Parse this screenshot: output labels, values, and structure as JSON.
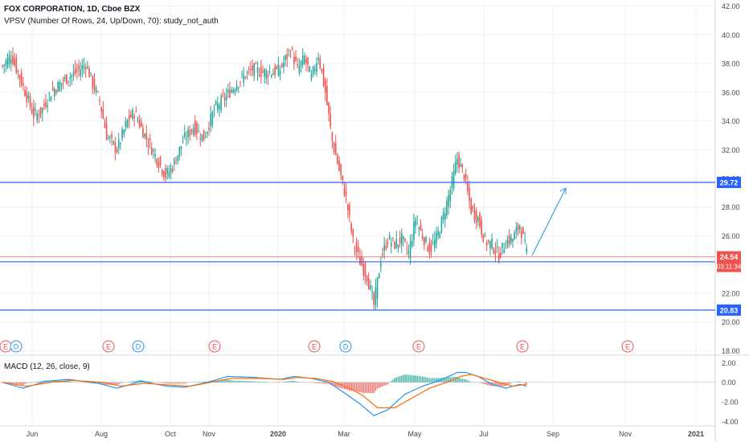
{
  "header": {
    "title": "FOX CORPORATION, 1D, Cboe BZX",
    "study": "VPSV (Number Of Rows, 24, Up/Down, 70): study_not_auth"
  },
  "macd_legend": "MACD (12, 26, close, 9)",
  "colors": {
    "up": "#26a69a",
    "down": "#ef5350",
    "level_line": "#2962ff",
    "last_price": "#ef5350",
    "macd_line": "#2196f3",
    "signal_line": "#ff6d00",
    "arrow": "#1e9bd0",
    "grid": "#eef0f3",
    "axis_text": "#4a4a4a"
  },
  "chart_data": [
    {
      "type": "candlestick",
      "title": "FOX CORPORATION, 1D, Cboe BZX",
      "x_labels": [
        "Jun",
        "Aug",
        "Oct",
        "Nov",
        "2020",
        "Mar",
        "May",
        "Jul",
        "Sep",
        "Nov",
        "2021"
      ],
      "y_ticks": [
        "42.00",
        "40.00",
        "38.00",
        "36.00",
        "34.00",
        "32.00",
        "30.00",
        "28.00",
        "26.00",
        "24.00",
        "22.00",
        "20.00",
        "18.00"
      ],
      "ylim": [
        17.8,
        42.2
      ],
      "close_anchors": [
        [
          0,
          37.8
        ],
        [
          5,
          38.6
        ],
        [
          12,
          36.4
        ],
        [
          18,
          34.4
        ],
        [
          22,
          34.6
        ],
        [
          28,
          36.0
        ],
        [
          35,
          36.8
        ],
        [
          40,
          37.2
        ],
        [
          45,
          37.6
        ],
        [
          48,
          38.0
        ],
        [
          52,
          36.6
        ],
        [
          56,
          35.4
        ],
        [
          60,
          33.0
        ],
        [
          66,
          32.0
        ],
        [
          72,
          34.0
        ],
        [
          76,
          34.6
        ],
        [
          82,
          33.0
        ],
        [
          88,
          31.6
        ],
        [
          94,
          30.2
        ],
        [
          98,
          30.8
        ],
        [
          104,
          32.6
        ],
        [
          110,
          33.6
        ],
        [
          116,
          32.8
        ],
        [
          122,
          34.8
        ],
        [
          128,
          35.6
        ],
        [
          132,
          36.2
        ],
        [
          138,
          37.0
        ],
        [
          144,
          37.6
        ],
        [
          150,
          37.4
        ],
        [
          156,
          37.4
        ],
        [
          160,
          37.6
        ],
        [
          166,
          39.0
        ],
        [
          170,
          37.6
        ],
        [
          174,
          38.4
        ],
        [
          178,
          37.0
        ],
        [
          182,
          38.6
        ],
        [
          186,
          36.0
        ],
        [
          190,
          32.6
        ],
        [
          194,
          30.6
        ],
        [
          198,
          28.6
        ],
        [
          202,
          25.6
        ],
        [
          206,
          24.2
        ],
        [
          210,
          23.2
        ],
        [
          214,
          21.2
        ],
        [
          218,
          24.4
        ],
        [
          222,
          25.8
        ],
        [
          226,
          25.4
        ],
        [
          230,
          25.8
        ],
        [
          234,
          24.8
        ],
        [
          238,
          27.2
        ],
        [
          242,
          26.0
        ],
        [
          246,
          25.0
        ],
        [
          250,
          25.8
        ],
        [
          254,
          27.4
        ],
        [
          258,
          29.2
        ],
        [
          262,
          31.4
        ],
        [
          266,
          30.2
        ],
        [
          270,
          27.8
        ],
        [
          274,
          27.2
        ],
        [
          278,
          25.6
        ],
        [
          282,
          25.4
        ],
        [
          286,
          24.6
        ],
        [
          290,
          25.6
        ],
        [
          294,
          25.8
        ],
        [
          298,
          26.8
        ],
        [
          302,
          24.8
        ]
      ],
      "candle_count": 303,
      "horizontal_levels": [
        "29.72",
        "24.19",
        "20.83"
      ],
      "last_price": "24.54",
      "countdown": "03:11:34",
      "earnings_markers": [
        "E",
        "D",
        "E",
        "D",
        "E",
        "E",
        "D",
        "E",
        "E",
        "E"
      ]
    },
    {
      "type": "line",
      "title": "MACD (12, 26, close, 9)",
      "y_ticks": [
        "2.00",
        "0.00",
        "-2.00",
        "-4.00"
      ],
      "ylim": [
        -4.2,
        2.6
      ],
      "series": [
        {
          "name": "MACD",
          "anchors": [
            [
              0,
              0.0
            ],
            [
              12,
              -0.6
            ],
            [
              25,
              0.1
            ],
            [
              38,
              0.3
            ],
            [
              55,
              -0.1
            ],
            [
              66,
              -0.6
            ],
            [
              80,
              0.1
            ],
            [
              95,
              -0.4
            ],
            [
              105,
              -0.5
            ],
            [
              118,
              0.0
            ],
            [
              130,
              0.6
            ],
            [
              145,
              0.5
            ],
            [
              160,
              0.3
            ],
            [
              168,
              0.6
            ],
            [
              178,
              0.4
            ],
            [
              188,
              0.0
            ],
            [
              198,
              -1.2
            ],
            [
              206,
              -2.2
            ],
            [
              214,
              -3.4
            ],
            [
              222,
              -2.8
            ],
            [
              232,
              -1.2
            ],
            [
              242,
              -0.4
            ],
            [
              252,
              0.2
            ],
            [
              262,
              1.0
            ],
            [
              267,
              1.0
            ],
            [
              274,
              0.6
            ],
            [
              282,
              -0.2
            ],
            [
              290,
              -0.6
            ],
            [
              298,
              -0.2
            ],
            [
              302,
              -0.4
            ]
          ]
        },
        {
          "name": "Signal",
          "anchors": [
            [
              0,
              0.0
            ],
            [
              14,
              -0.4
            ],
            [
              28,
              0.0
            ],
            [
              40,
              0.2
            ],
            [
              58,
              0.0
            ],
            [
              68,
              -0.4
            ],
            [
              82,
              -0.1
            ],
            [
              98,
              -0.3
            ],
            [
              108,
              -0.4
            ],
            [
              120,
              0.0
            ],
            [
              132,
              0.4
            ],
            [
              148,
              0.4
            ],
            [
              162,
              0.3
            ],
            [
              170,
              0.5
            ],
            [
              180,
              0.4
            ],
            [
              190,
              0.1
            ],
            [
              200,
              -0.6
            ],
            [
              208,
              -1.4
            ],
            [
              216,
              -2.6
            ],
            [
              226,
              -2.6
            ],
            [
              236,
              -1.6
            ],
            [
              246,
              -0.6
            ],
            [
              256,
              0.0
            ],
            [
              264,
              0.6
            ],
            [
              270,
              0.8
            ],
            [
              278,
              0.4
            ],
            [
              286,
              0.0
            ],
            [
              294,
              -0.4
            ],
            [
              302,
              -0.2
            ]
          ]
        }
      ]
    }
  ]
}
